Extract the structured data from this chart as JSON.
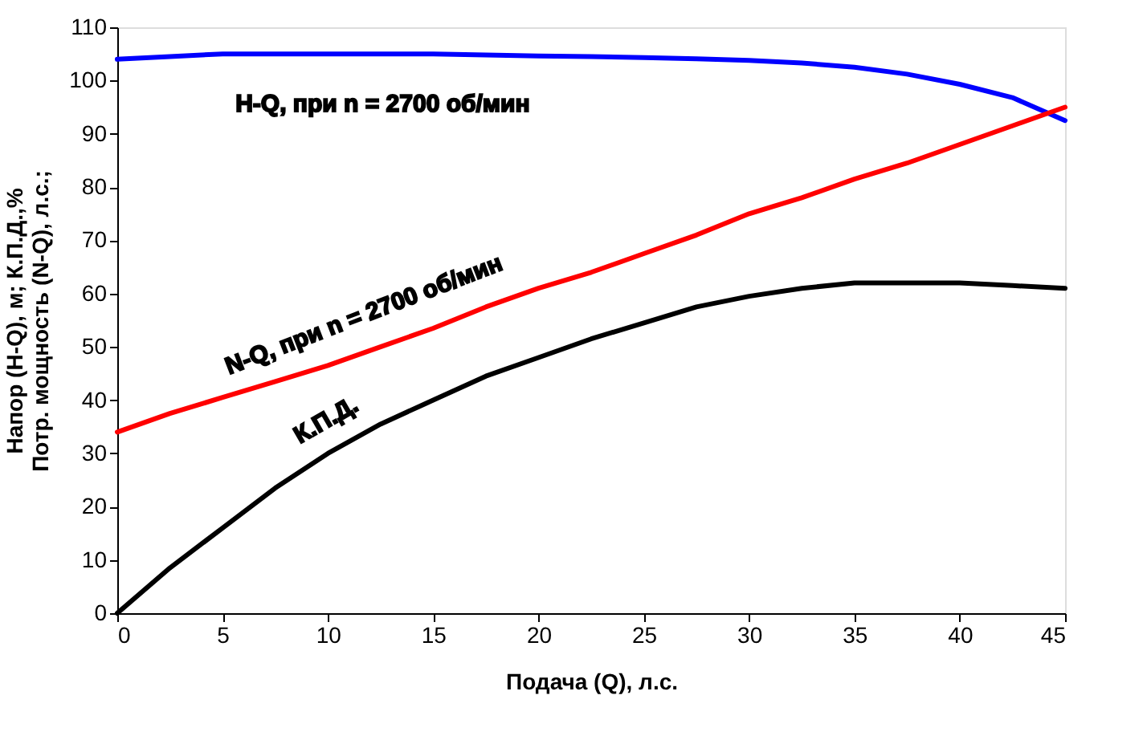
{
  "chart_data": {
    "type": "line",
    "xlabel": "Подача (Q), л.с.",
    "ylabel": "Напор (H-Q), м;  К.П.Д.,%\nПотр. мощность (N-Q), л.с.;",
    "x": [
      0,
      2.5,
      5,
      7.5,
      10,
      12.5,
      15,
      17.5,
      20,
      22.5,
      25,
      27.5,
      30,
      32.5,
      35,
      37.5,
      40,
      42.5,
      45
    ],
    "series": [
      {
        "color": "#0000ff",
        "values": [
          104,
          104.5,
          105,
          105,
          105,
          105,
          105,
          104.8,
          104.6,
          104.5,
          104.3,
          104.1,
          103.8,
          103.3,
          102.5,
          101.2,
          99.3,
          96.8,
          92.5
        ]
      },
      {
        "color": "#ff0000",
        "values": [
          34,
          37.5,
          40.5,
          43.5,
          46.5,
          50,
          53.5,
          57.5,
          61,
          64,
          67.5,
          71,
          75,
          78,
          81.5,
          84.5,
          88,
          91.5,
          95
        ]
      },
      {
        "color": "#000000",
        "values": [
          0,
          8.5,
          16,
          23.5,
          30,
          35.5,
          40,
          44.5,
          48,
          51.5,
          54.5,
          57.5,
          59.5,
          61,
          62,
          62,
          62,
          61.5,
          61
        ]
      }
    ],
    "annotations": [
      "H-Q, при n = 2700 об/мин",
      "N-Q,  при n = 2700 об/мин",
      "К.П.Д."
    ],
    "xlim": [
      0,
      45
    ],
    "xticks": [
      0,
      5,
      10,
      15,
      20,
      25,
      30,
      35,
      40,
      45
    ],
    "ylim": [
      0,
      110
    ],
    "yticks": [
      0,
      10,
      20,
      30,
      40,
      50,
      60,
      70,
      80,
      90,
      100,
      110
    ],
    "grid": false,
    "marker": "none",
    "line_style": "solid"
  }
}
